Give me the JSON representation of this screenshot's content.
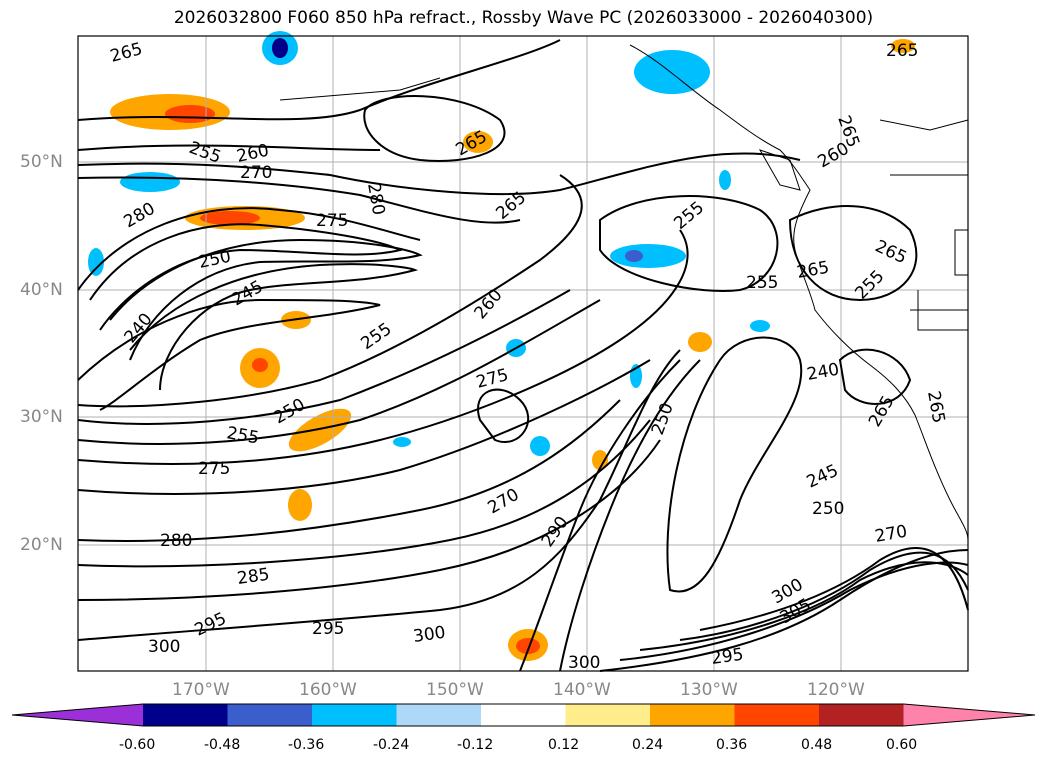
{
  "title": "2026032800 F060 850 hPa refract., Rossby Wave PC (2026033000 - 2026040300)",
  "lat_labels": [
    "50°N",
    "40°N",
    "30°N",
    "20°N"
  ],
  "lon_labels": [
    "170°W",
    "160°W",
    "150°W",
    "140°W",
    "130°W",
    "120°W"
  ],
  "colorbar": {
    "colors": [
      "#9b30d9",
      "#00008b",
      "#3a5fcd",
      "#00bfff",
      "#add8f7",
      "#ffffff",
      "#ffec8b",
      "#ffa500",
      "#ff4500",
      "#b22222",
      "#ff82ab"
    ],
    "ticks": [
      "-0.60",
      "-0.48",
      "-0.36",
      "-0.24",
      "-0.12",
      "0.12",
      "0.24",
      "0.36",
      "0.48",
      "0.60"
    ]
  },
  "contour_labels": [
    "265",
    "265",
    "255",
    "260",
    "270",
    "280",
    "275",
    "280",
    "265",
    "250",
    "245",
    "240",
    "255",
    "265",
    "265",
    "255",
    "260",
    "265",
    "265",
    "255",
    "255",
    "260",
    "275",
    "250",
    "250",
    "255",
    "275",
    "270",
    "290",
    "240",
    "265",
    "245",
    "250",
    "270",
    "265",
    "280",
    "285",
    "295",
    "300",
    "295",
    "300",
    "300",
    "300",
    "305",
    "295"
  ]
}
